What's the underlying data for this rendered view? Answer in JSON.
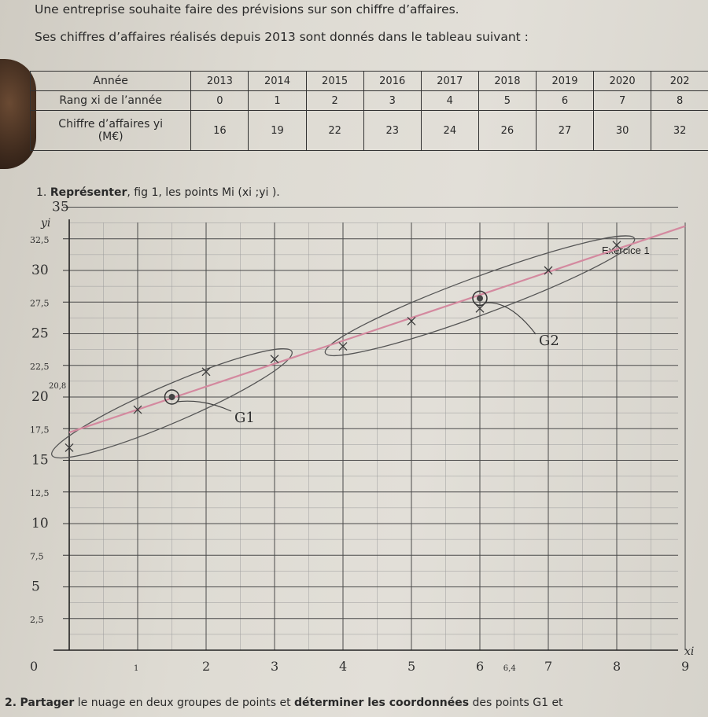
{
  "intro": {
    "line1": "Une entreprise souhaite faire des prévisions sur son chiffre d’affaires.",
    "line2": "Ses chiffres d’affaires réalisés depuis 2013 sont donnés dans le tableau suivant :"
  },
  "table": {
    "row_labels": [
      "Année",
      "Rang xi de l’année",
      "Chiffre d’affaires yi",
      "(M€)"
    ],
    "years": [
      "2013",
      "2014",
      "2015",
      "2016",
      "2017",
      "2018",
      "2019",
      "2020",
      "202"
    ],
    "ranks": [
      "0",
      "1",
      "2",
      "3",
      "4",
      "5",
      "6",
      "7",
      "8"
    ],
    "values": [
      "16",
      "19",
      "22",
      "23",
      "24",
      "26",
      "27",
      "30",
      "32"
    ]
  },
  "question1": {
    "number": "1.",
    "bold": "Représenter",
    "rest": ", fig 1, les points Mi (xi ;yi )."
  },
  "question2": {
    "number": "2.",
    "part1": "Partager",
    "part2": " le nuage en deux groupes de points et ",
    "part3": "déterminer les coordonnées",
    "part4": " des points G1 et"
  },
  "graph": {
    "title": "Exercice 1",
    "y_axis_label": "yi",
    "x_axis_label": "xi",
    "y_tick_labels": [
      "35",
      "32,5",
      "30",
      "27,5",
      "25",
      "22,5",
      "20",
      "17,5",
      "15",
      "12,5",
      "10",
      "7,5",
      "5",
      "2,5"
    ],
    "x_tick_labels": [
      "0",
      "1",
      "2",
      "3",
      "4",
      "5",
      "6",
      "6,4",
      "7",
      "8",
      "9"
    ],
    "annotation_20_8": "20,8",
    "g1_label": "G1",
    "g2_label": "G2",
    "colors": {
      "trend_line": "#d4899f",
      "pencil": "#555555",
      "grid": "#4a4a4a"
    }
  },
  "chart_data": {
    "type": "scatter",
    "title": "Exercice 1",
    "xlabel": "xi",
    "ylabel": "yi",
    "xlim": [
      0,
      9
    ],
    "ylim": [
      0,
      35
    ],
    "points": [
      [
        0,
        16
      ],
      [
        1,
        19
      ],
      [
        2,
        22
      ],
      [
        3,
        23
      ],
      [
        4,
        24
      ],
      [
        5,
        26
      ],
      [
        6,
        27
      ],
      [
        7,
        30
      ],
      [
        8,
        32
      ]
    ],
    "groups": [
      [
        0,
        1,
        2,
        3
      ],
      [
        4,
        5,
        6,
        7,
        8
      ]
    ],
    "g1": [
      1.5,
      20
    ],
    "g2": [
      6,
      27.8
    ],
    "trend_line": [
      [
        0,
        17.2
      ],
      [
        9,
        33.5
      ]
    ]
  }
}
